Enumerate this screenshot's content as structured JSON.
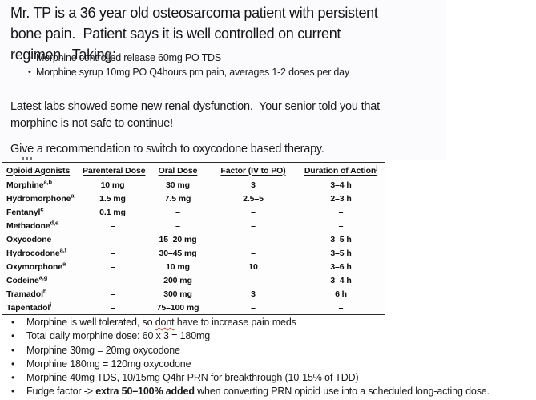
{
  "case": {
    "intro": "Mr. TP is a 36 year old osteosarcoma patient with persistent\nbone pain.  Patient says it is well controlled on current\nregimen.  Taking:",
    "medications": [
      "Morphine controlled release 60mg PO TDS",
      "Morphine syrup 10mg PO Q4hours prn pain, averages 1-2 doses per day"
    ],
    "labs_update": "Latest labs showed some new renal dysfunction.  Your senior told you that\nmorphine is not safe to continue!",
    "task": "Give a recommendation to switch to oxycodone based therapy."
  },
  "equianalgesic_table": {
    "columns": [
      {
        "label": "Opioid Agonists",
        "sup": ""
      },
      {
        "label": "Parenteral Dose",
        "sup": ""
      },
      {
        "label": "Oral Dose",
        "sup": ""
      },
      {
        "label": "Factor (IV to PO)",
        "sup": ""
      },
      {
        "label": "Duration of Action",
        "sup": "j"
      }
    ],
    "rows": [
      {
        "drug": "Morphine",
        "sup": "a,b",
        "parenteral": "10 mg",
        "oral": "30 mg",
        "factor": "3",
        "duration": "3–4 h"
      },
      {
        "drug": "Hydromorphone",
        "sup": "a",
        "parenteral": "1.5 mg",
        "oral": "7.5 mg",
        "factor": "2.5–5",
        "duration": "2–3 h"
      },
      {
        "drug": "Fentanyl",
        "sup": "c",
        "parenteral": "0.1 mg",
        "oral": "–",
        "factor": "–",
        "duration": "–"
      },
      {
        "drug": "Methadone",
        "sup": "d,e",
        "parenteral": "–",
        "oral": "–",
        "factor": "–",
        "duration": "–"
      },
      {
        "drug": "Oxycodone",
        "sup": "",
        "parenteral": "–",
        "oral": "15–20 mg",
        "factor": "–",
        "duration": "3–5 h"
      },
      {
        "drug": "Hydrocodone",
        "sup": "a,f",
        "parenteral": "–",
        "oral": "30–45 mg",
        "factor": "–",
        "duration": "3–5 h"
      },
      {
        "drug": "Oxymorphone",
        "sup": "a",
        "parenteral": "–",
        "oral": "10 mg",
        "factor": "10",
        "duration": "3–6 h"
      },
      {
        "drug": "Codeine",
        "sup": "a,g",
        "parenteral": "–",
        "oral": "200 mg",
        "factor": "–",
        "duration": "3–4 h"
      },
      {
        "drug": "Tramadol",
        "sup": "h",
        "parenteral": "–",
        "oral": "300 mg",
        "factor": "3",
        "duration": "6 h"
      },
      {
        "drug": "Tapentadol",
        "sup": "i",
        "parenteral": "–",
        "oral": "75–100 mg",
        "factor": "–",
        "duration": "–"
      }
    ]
  },
  "notes": [
    {
      "parts": [
        {
          "text": "Morphine is well tolerated, so ",
          "style": ""
        },
        {
          "text": "dont",
          "style": "misspelled"
        },
        {
          "text": " have to increase pain meds",
          "style": ""
        }
      ]
    },
    {
      "parts": [
        {
          "text": "Total daily morphine dose: 60 x 3 = 180mg",
          "style": ""
        }
      ]
    },
    {
      "parts": [
        {
          "text": "Morphine 30mg = 20mg oxycodone",
          "style": ""
        }
      ]
    },
    {
      "parts": [
        {
          "text": "Morphine 180mg = 120mg oxycodone",
          "style": ""
        }
      ]
    },
    {
      "parts": [
        {
          "text": "Morphine 40mg TDS, 10/15mg Q4hr PRN for breakthrough (10-15% of TDD)",
          "style": ""
        }
      ]
    },
    {
      "parts": [
        {
          "text": "Fudge factor -> ",
          "style": ""
        },
        {
          "text": "extra 50–100% added",
          "style": "bold"
        },
        {
          "text": " when converting PRN opioid use into a scheduled long-acting dose.",
          "style": ""
        }
      ]
    }
  ],
  "colors": {
    "text": "#1c1c1c",
    "table_border": "#2b2b2b",
    "misspelling_underline": "#e0301e",
    "background": "#ffffff"
  }
}
